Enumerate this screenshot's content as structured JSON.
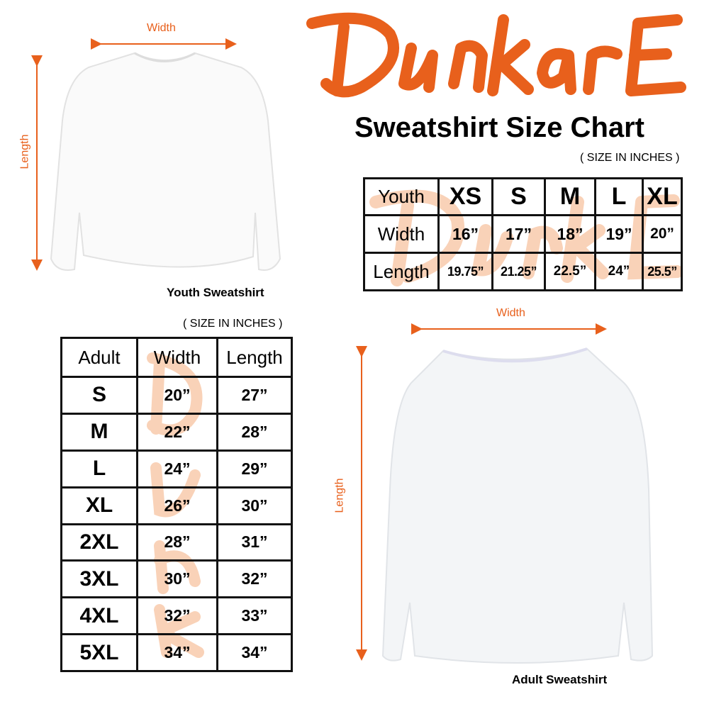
{
  "brand": {
    "logo_text": "DunkarE",
    "accent": "#e8601c"
  },
  "title": "Sweatshirt Size Chart",
  "units_note": "( SIZE IN INCHES )",
  "youth": {
    "caption": "Youth Sweatshirt",
    "width_label": "Width",
    "length_label": "Length",
    "table": {
      "header": [
        "Youth",
        "XS",
        "S",
        "M",
        "L",
        "XL"
      ],
      "rows": [
        [
          "Width",
          "16”",
          "17”",
          "18”",
          "19”",
          "20”"
        ],
        [
          "Length",
          "19.75”",
          "21.25”",
          "22.5”",
          "24”",
          "25.5”"
        ]
      ]
    }
  },
  "adult": {
    "caption": "Adult Sweatshirt",
    "width_label": "Width",
    "length_label": "Length",
    "table": {
      "header": [
        "Adult",
        "Width",
        "Length"
      ],
      "rows": [
        [
          "S",
          "20”",
          "27”"
        ],
        [
          "M",
          "22”",
          "28”"
        ],
        [
          "L",
          "24”",
          "29”"
        ],
        [
          "XL",
          "26”",
          "30”"
        ],
        [
          "2XL",
          "28”",
          "31”"
        ],
        [
          "3XL",
          "30”",
          "32”"
        ],
        [
          "4XL",
          "32”",
          "33”"
        ],
        [
          "5XL",
          "34”",
          "34”"
        ]
      ]
    }
  }
}
